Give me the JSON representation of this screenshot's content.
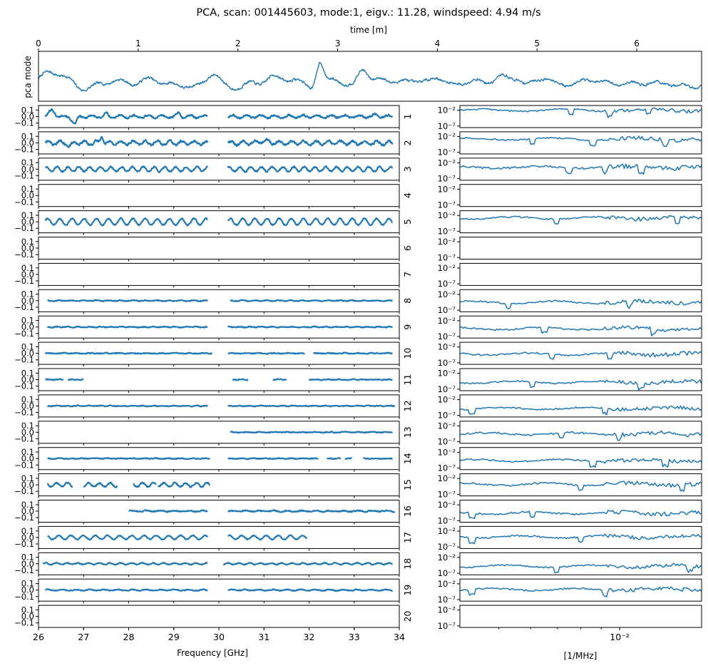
{
  "colors": {
    "line": "#1f77b4",
    "axis": "#000000",
    "background": "#ffffff"
  },
  "title": "PCA, scan: 001445603, mode:1, eigv.: 11.28, windspeed: 4.94 m/s",
  "chart_data": [
    {
      "type": "line",
      "name": "pca-mode-timeseries",
      "title": "PCA, scan: 001445603, mode:1, eigv.: 11.28, windspeed: 4.94 m/s",
      "xlabel": "time [m]",
      "ylabel": "pca mode",
      "xlim": [
        0,
        6.65
      ],
      "xticks": [
        0,
        1,
        2,
        3,
        4,
        5,
        6
      ],
      "xtick_labels": [
        "0",
        "1",
        "2",
        "3",
        "4",
        "5",
        "6"
      ],
      "bumps": [
        [
          0.1,
          0.55,
          0.1
        ],
        [
          0.27,
          0.3,
          0.08
        ],
        [
          0.45,
          -0.15,
          0.08
        ],
        [
          0.8,
          0.2,
          0.1
        ],
        [
          1.1,
          0.3,
          0.09
        ],
        [
          1.75,
          0.55,
          0.06
        ],
        [
          2.0,
          -0.2,
          0.1
        ],
        [
          2.1,
          0.25,
          0.08
        ],
        [
          2.35,
          0.35,
          0.07
        ],
        [
          2.55,
          0.3,
          0.09
        ],
        [
          2.82,
          1.35,
          0.035
        ],
        [
          3.0,
          0.4,
          0.08
        ],
        [
          2.8,
          -0.3,
          0.05
        ],
        [
          3.07,
          -0.25,
          0.06
        ],
        [
          3.25,
          0.9,
          0.05
        ],
        [
          3.45,
          0.3,
          0.07
        ],
        [
          3.75,
          0.3,
          0.1
        ],
        [
          4.0,
          0.35,
          0.06
        ],
        [
          4.35,
          0.3,
          0.08
        ],
        [
          4.65,
          0.4,
          0.08
        ],
        [
          4.8,
          0.3,
          0.05
        ],
        [
          5.05,
          0.35,
          0.08
        ],
        [
          5.5,
          0.3,
          0.1
        ],
        [
          6.0,
          0.15,
          0.15
        ]
      ],
      "wave": {
        "amplitude": 0.09,
        "cycles": 26
      },
      "noise": 0.05,
      "ylim": [
        -0.8,
        1.7
      ]
    },
    {
      "type": "line",
      "name": "mode-spectra",
      "xlabel": "Frequency [GHz]",
      "xlim": [
        26,
        34
      ],
      "xticks": [
        26,
        27,
        28,
        29,
        30,
        31,
        32,
        33,
        34
      ],
      "ylim": [
        -0.17,
        0.17
      ],
      "yticks": [
        0.1,
        0.0,
        -0.1
      ],
      "ytick_labels": [
        "0.1",
        "0.0",
        "−0.1"
      ],
      "channels": [
        {
          "label": "1",
          "segments": [
            [
              26.15,
              29.75
            ],
            [
              30.2,
              33.85
            ]
          ],
          "wave_amplitude": 0.02,
          "noise": 0.012,
          "features": [
            [
              26.3,
              0.1,
              0.06
            ],
            [
              26.8,
              -0.12,
              0.05
            ],
            [
              27.5,
              0.05,
              0.03
            ],
            [
              29.1,
              0.06,
              0.03
            ],
            [
              33.5,
              0.03,
              0.05
            ]
          ]
        },
        {
          "label": "2",
          "segments": [
            [
              26.15,
              29.75
            ],
            [
              30.2,
              33.85
            ]
          ],
          "wave_amplitude": 0.03,
          "noise": 0.015,
          "features": [
            [
              27.4,
              0.12,
              0.03
            ],
            [
              26.7,
              -0.05,
              0.05
            ],
            [
              31.0,
              0.03,
              0.1
            ]
          ]
        },
        {
          "label": "3",
          "segments": [
            [
              26.15,
              29.75
            ],
            [
              30.2,
              33.85
            ]
          ],
          "wave_amplitude": 0.035,
          "noise": 0.01,
          "features": []
        },
        {
          "label": "4",
          "segments": [],
          "wave_amplitude": 0,
          "noise": 0,
          "features": []
        },
        {
          "label": "5",
          "segments": [
            [
              26.15,
              29.75
            ],
            [
              30.2,
              33.85
            ]
          ],
          "wave_amplitude": 0.05,
          "noise": 0.008,
          "features": []
        },
        {
          "label": "6",
          "segments": [],
          "wave_amplitude": 0,
          "noise": 0,
          "features": []
        },
        {
          "label": "7",
          "segments": [],
          "wave_amplitude": 0,
          "noise": 0,
          "features": []
        },
        {
          "label": "8",
          "segments": [
            [
              26.2,
              29.75
            ],
            [
              30.25,
              33.85
            ]
          ],
          "wave_amplitude": 0.005,
          "noise": 0.006,
          "features": []
        },
        {
          "label": "9",
          "segments": [
            [
              26.2,
              29.75
            ],
            [
              30.2,
              33.85
            ]
          ],
          "wave_amplitude": 0.005,
          "noise": 0.006,
          "features": []
        },
        {
          "label": "10",
          "segments": [
            [
              26.15,
              29.85
            ],
            [
              30.2,
              31.9
            ],
            [
              32.1,
              33.85
            ]
          ],
          "wave_amplitude": 0.004,
          "noise": 0.006,
          "features": []
        },
        {
          "label": "11",
          "segments": [
            [
              26.15,
              26.55
            ],
            [
              26.65,
              27.0
            ],
            [
              30.3,
              30.65
            ],
            [
              31.2,
              31.5
            ],
            [
              32.0,
              33.85
            ]
          ],
          "wave_amplitude": 0.004,
          "noise": 0.006,
          "features": []
        },
        {
          "label": "12",
          "segments": [
            [
              26.2,
              29.75
            ],
            [
              30.2,
              33.9
            ]
          ],
          "wave_amplitude": 0.004,
          "noise": 0.006,
          "features": []
        },
        {
          "label": "13",
          "segments": [
            [
              30.25,
              33.85
            ]
          ],
          "wave_amplitude": 0.004,
          "noise": 0.006,
          "features": []
        },
        {
          "label": "14",
          "segments": [
            [
              26.2,
              29.8
            ],
            [
              30.2,
              32.2
            ],
            [
              32.4,
              32.7
            ],
            [
              32.8,
              32.95
            ],
            [
              33.2,
              33.85
            ]
          ],
          "wave_amplitude": 0.004,
          "noise": 0.006,
          "features": []
        },
        {
          "label": "15",
          "segments": [
            [
              26.2,
              26.75
            ],
            [
              27.0,
              27.75
            ],
            [
              28.1,
              28.6
            ],
            [
              28.65,
              29.8
            ]
          ],
          "wave_amplitude": 0.03,
          "noise": 0.01,
          "features": []
        },
        {
          "label": "16",
          "segments": [
            [
              28.0,
              29.75
            ],
            [
              30.2,
              33.9
            ]
          ],
          "wave_amplitude": 0.008,
          "noise": 0.008,
          "features": []
        },
        {
          "label": "17",
          "segments": [
            [
              26.2,
              29.75
            ],
            [
              30.2,
              31.95
            ]
          ],
          "wave_amplitude": 0.03,
          "noise": 0.006,
          "features": []
        },
        {
          "label": "18",
          "segments": [
            [
              26.1,
              29.75
            ],
            [
              30.1,
              33.85
            ]
          ],
          "wave_amplitude": 0.012,
          "noise": 0.006,
          "features": []
        },
        {
          "label": "19",
          "segments": [
            [
              26.15,
              29.75
            ],
            [
              30.2,
              33.85
            ]
          ],
          "wave_amplitude": 0.008,
          "noise": 0.006,
          "features": []
        },
        {
          "label": "20",
          "segments": [],
          "wave_amplitude": 0,
          "noise": 0,
          "features": []
        }
      ]
    },
    {
      "type": "line",
      "name": "mode-power-spectra",
      "xlabel": "[1/MHz]",
      "xscale": "log",
      "xlim": [
        0.004,
        0.016
      ],
      "xticks": [
        0.01
      ],
      "xtick_labels": [
        "10⁻²"
      ],
      "yscale": "log",
      "ylim_exp": [
        -7.5,
        -0.5
      ],
      "yticks_exp": [
        -2,
        -7
      ],
      "ytick_labels": [
        "10⁻²",
        "10⁻⁷"
      ],
      "channels": [
        {
          "label": "1",
          "empty": false,
          "level": -2.0,
          "spread": 0.9,
          "dips": [
            0.46,
            0.62,
            0.78
          ]
        },
        {
          "label": "2",
          "empty": false,
          "level": -2.8,
          "spread": 1.0,
          "dips": [
            0.3,
            0.55,
            0.85
          ]
        },
        {
          "label": "3",
          "empty": false,
          "level": -3.4,
          "spread": 1.2,
          "dips": [
            0.45,
            0.6,
            0.75
          ]
        },
        {
          "label": "4",
          "empty": true
        },
        {
          "label": "5",
          "empty": false,
          "level": -2.8,
          "spread": 1.0,
          "dips": [
            0.4,
            0.9
          ]
        },
        {
          "label": "6",
          "empty": true
        },
        {
          "label": "7",
          "empty": true
        },
        {
          "label": "8",
          "empty": false,
          "level": -4.5,
          "spread": 1.0,
          "dips": [
            0.2,
            0.7
          ]
        },
        {
          "label": "9",
          "empty": false,
          "level": -4.5,
          "spread": 1.0,
          "dips": [
            0.35,
            0.8
          ]
        },
        {
          "label": "10",
          "empty": false,
          "level": -4.2,
          "spread": 1.1,
          "dips": [
            0.38,
            0.62
          ]
        },
        {
          "label": "11",
          "empty": false,
          "level": -4.8,
          "spread": 0.9,
          "dips": [
            0.3,
            0.75
          ]
        },
        {
          "label": "12",
          "empty": false,
          "level": -4.8,
          "spread": 1.0,
          "dips": [
            0.05,
            0.6
          ]
        },
        {
          "label": "13",
          "empty": false,
          "level": -4.5,
          "spread": 1.2,
          "dips": [
            0.42,
            0.66
          ]
        },
        {
          "label": "14",
          "empty": false,
          "level": -4.6,
          "spread": 1.0,
          "dips": [
            0.55,
            0.85
          ]
        },
        {
          "label": "15",
          "empty": false,
          "level": -3.8,
          "spread": 1.1,
          "dips": [
            0.5,
            0.92
          ]
        },
        {
          "label": "16",
          "empty": false,
          "level": -4.6,
          "spread": 1.1,
          "dips": [
            0.05,
            0.3
          ]
        },
        {
          "label": "17",
          "empty": false,
          "level": -3.8,
          "spread": 1.0,
          "dips": [
            0.05,
            0.5
          ]
        },
        {
          "label": "18",
          "empty": false,
          "level": -4.8,
          "spread": 0.9,
          "dips": [
            0.4,
            0.95
          ]
        },
        {
          "label": "19",
          "empty": false,
          "level": -3.8,
          "spread": 1.0,
          "dips": [
            0.05,
            0.6
          ]
        },
        {
          "label": "20",
          "empty": true
        }
      ]
    }
  ]
}
